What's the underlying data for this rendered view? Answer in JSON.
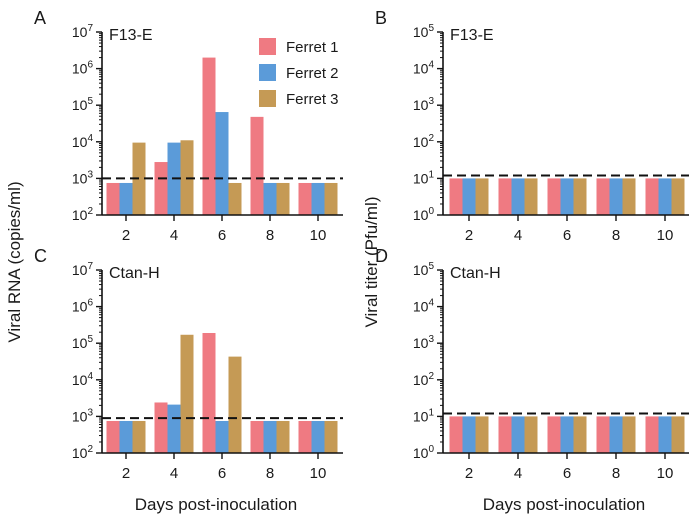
{
  "figure": {
    "ylabel_left": "Viral RNA (copies/ml)",
    "ylabel_right": "Viral titer (Pfu/ml)",
    "xlabel": "Days post-inoculation",
    "legend": [
      {
        "name": "Ferret 1",
        "color": "#ef7a82"
      },
      {
        "name": "Ferret 2",
        "color": "#5b9bd9"
      },
      {
        "name": "Ferret 3",
        "color": "#c59a55"
      }
    ]
  },
  "chart_data": [
    {
      "type": "bar",
      "panel_letter": "A",
      "title": "F13-E",
      "scale": "log",
      "ylim": [
        100,
        10000000
      ],
      "threshold": 1000,
      "categories": [
        "2",
        "4",
        "6",
        "8",
        "10"
      ],
      "series": [
        {
          "name": "Ferret 1",
          "values": [
            750,
            2800,
            2000000,
            48000,
            750
          ]
        },
        {
          "name": "Ferret 2",
          "values": [
            750,
            9500,
            65000,
            750,
            750
          ]
        },
        {
          "name": "Ferret 3",
          "values": [
            9500,
            11000,
            750,
            750,
            750
          ]
        }
      ]
    },
    {
      "type": "bar",
      "panel_letter": "B",
      "title": "F13-E",
      "scale": "log",
      "ylim": [
        1,
        100000
      ],
      "threshold": 12,
      "categories": [
        "2",
        "4",
        "6",
        "8",
        "10"
      ],
      "series": [
        {
          "name": "Ferret 1",
          "values": [
            10,
            10,
            10,
            10,
            10
          ]
        },
        {
          "name": "Ferret 2",
          "values": [
            10,
            10,
            10,
            10,
            10
          ]
        },
        {
          "name": "Ferret 3",
          "values": [
            10,
            10,
            10,
            10,
            10
          ]
        }
      ]
    },
    {
      "type": "bar",
      "panel_letter": "C",
      "title": "Ctan-H",
      "scale": "log",
      "ylim": [
        100,
        10000000
      ],
      "threshold": 900,
      "categories": [
        "2",
        "4",
        "6",
        "8",
        "10"
      ],
      "series": [
        {
          "name": "Ferret 1",
          "values": [
            750,
            2400,
            190000,
            750,
            750
          ]
        },
        {
          "name": "Ferret 2",
          "values": [
            750,
            2100,
            750,
            750,
            750
          ]
        },
        {
          "name": "Ferret 3",
          "values": [
            750,
            170000,
            43000,
            750,
            750
          ]
        }
      ]
    },
    {
      "type": "bar",
      "panel_letter": "D",
      "title": "Ctan-H",
      "scale": "log",
      "ylim": [
        1,
        100000
      ],
      "threshold": 12,
      "categories": [
        "2",
        "4",
        "6",
        "8",
        "10"
      ],
      "series": [
        {
          "name": "Ferret 1",
          "values": [
            10,
            10,
            10,
            10,
            10
          ]
        },
        {
          "name": "Ferret 2",
          "values": [
            10,
            10,
            10,
            10,
            10
          ]
        },
        {
          "name": "Ferret 3",
          "values": [
            10,
            10,
            10,
            10,
            10
          ]
        }
      ]
    }
  ]
}
